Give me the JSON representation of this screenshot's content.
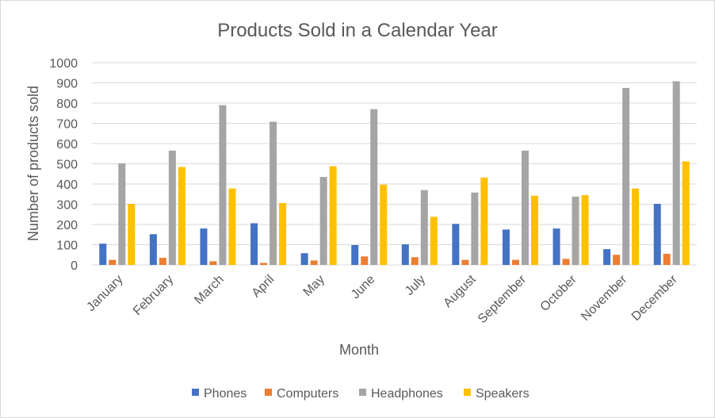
{
  "chart_data": {
    "type": "bar",
    "title": "Products Sold in a Calendar Year",
    "xlabel": "Month",
    "ylabel": "Number of products sold",
    "ylim": [
      0,
      1000
    ],
    "yticks": [
      0,
      100,
      200,
      300,
      400,
      500,
      600,
      700,
      800,
      900,
      1000
    ],
    "grid": true,
    "legend": "bottom",
    "categories": [
      "January",
      "February",
      "March",
      "April",
      "May",
      "June",
      "July",
      "August",
      "September",
      "October",
      "November",
      "December"
    ],
    "series": [
      {
        "name": "Phones",
        "color": "#4472C4",
        "values": [
          105,
          152,
          180,
          206,
          58,
          98,
          102,
          203,
          175,
          180,
          78,
          302
        ]
      },
      {
        "name": "Computers",
        "color": "#ED7D31",
        "values": [
          25,
          35,
          18,
          10,
          22,
          42,
          38,
          25,
          25,
          30,
          50,
          55
        ]
      },
      {
        "name": "Headphones",
        "color": "#A5A5A5",
        "values": [
          502,
          565,
          790,
          708,
          435,
          770,
          370,
          358,
          565,
          338,
          875,
          908
        ]
      },
      {
        "name": "Speakers",
        "color": "#FFC000",
        "values": [
          302,
          484,
          378,
          306,
          488,
          397,
          238,
          432,
          342,
          345,
          378,
          512
        ]
      }
    ]
  }
}
